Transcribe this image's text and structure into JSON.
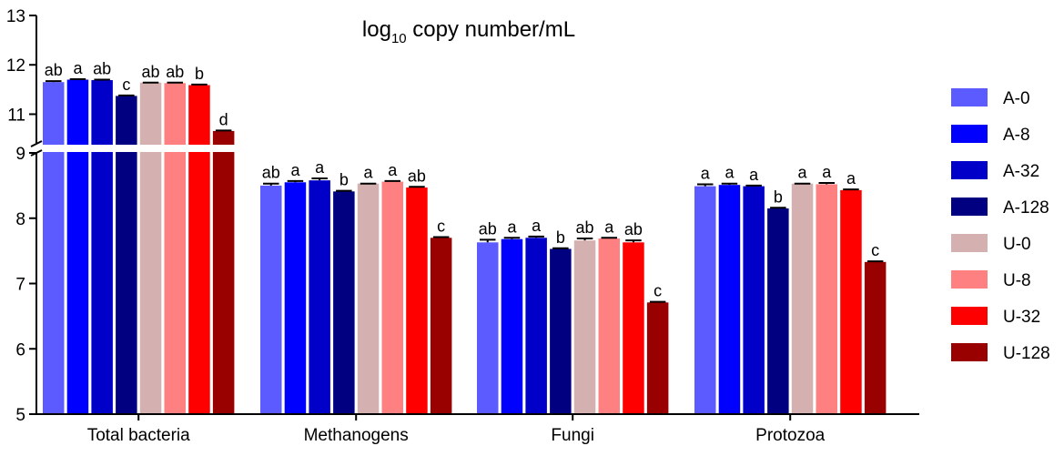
{
  "chart_data": {
    "type": "bar",
    "title_main": "log",
    "title_sub": "10",
    "title_rest": " copy number/mL",
    "categories": [
      "Total bacteria",
      "Methanogens",
      "Fungi",
      "Protozoa"
    ],
    "y_ticks_lower": [
      "5",
      "6",
      "7",
      "8",
      "9"
    ],
    "y_ticks_upper": [
      "11",
      "12",
      "13"
    ],
    "ylim_lower": [
      5,
      9
    ],
    "ylim_upper": [
      10.4,
      13
    ],
    "axis_break": true,
    "grid": false,
    "legend_position": "right",
    "series": [
      {
        "name": "A-0",
        "color": "#5b5bff",
        "values": [
          11.65,
          8.5,
          7.63,
          8.49
        ],
        "errors": [
          0.02,
          0.03,
          0.04,
          0.03
        ],
        "letters": [
          "ab",
          "ab",
          "ab",
          "a"
        ]
      },
      {
        "name": "A-8",
        "color": "#0000ff",
        "values": [
          11.7,
          8.55,
          7.68,
          8.51
        ],
        "errors": [
          0.01,
          0.02,
          0.02,
          0.02
        ],
        "letters": [
          "a",
          "a",
          "a",
          "a"
        ]
      },
      {
        "name": "A-32",
        "color": "#0000c8",
        "values": [
          11.69,
          8.58,
          7.7,
          8.49
        ],
        "errors": [
          0.01,
          0.03,
          0.02,
          0.01
        ],
        "letters": [
          "ab",
          "a",
          "a",
          "a"
        ]
      },
      {
        "name": "A-128",
        "color": "#000080",
        "values": [
          11.37,
          8.41,
          7.53,
          8.15
        ],
        "errors": [
          0.01,
          0.01,
          0.01,
          0.01
        ],
        "letters": [
          "c",
          "b",
          "b",
          "b"
        ]
      },
      {
        "name": "U-0",
        "color": "#d5b0b0",
        "values": [
          11.64,
          8.53,
          7.66,
          8.53
        ],
        "errors": [
          0.0,
          0.0,
          0.03,
          0.0
        ],
        "letters": [
          "ab",
          "a",
          "ab",
          "a"
        ]
      },
      {
        "name": "U-8",
        "color": "#ff8080",
        "values": [
          11.63,
          8.56,
          7.69,
          8.52
        ],
        "errors": [
          0.01,
          0.01,
          0.01,
          0.02
        ],
        "letters": [
          "ab",
          "a",
          "a",
          "a"
        ]
      },
      {
        "name": "U-32",
        "color": "#ff0000",
        "values": [
          11.59,
          8.47,
          7.63,
          8.43
        ],
        "errors": [
          0.01,
          0.01,
          0.03,
          0.01
        ],
        "letters": [
          "b",
          "ab",
          "ab",
          "a"
        ]
      },
      {
        "name": "U-128",
        "color": "#990000",
        "values": [
          10.66,
          7.7,
          6.71,
          7.33
        ],
        "errors": [
          0.01,
          0.01,
          0.01,
          0.01
        ],
        "letters": [
          "d",
          "c",
          "c",
          "c"
        ]
      }
    ]
  }
}
